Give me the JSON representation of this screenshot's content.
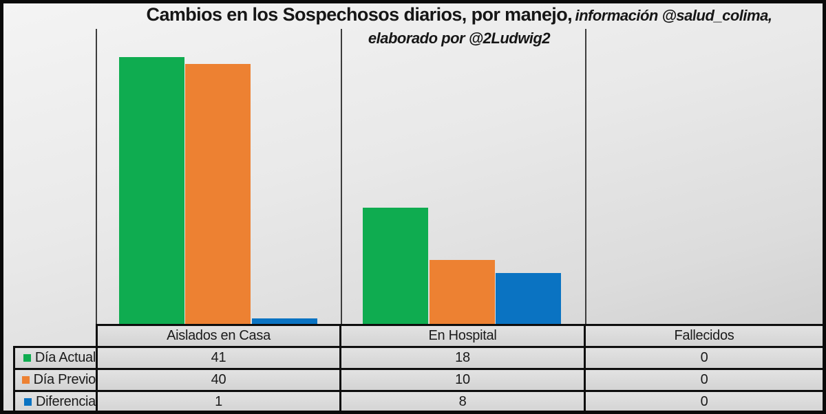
{
  "title": {
    "main": "Cambios en los Sospechosos diarios, por manejo,",
    "credit": "información @salud_colima,",
    "credit_line2": "elaborado por @2Ludwig2"
  },
  "chart_data": {
    "type": "bar",
    "title": "Cambios en los Sospechosos diarios, por manejo",
    "subtitle": "información @salud_colima, elaborado por @2Ludwig2",
    "categories": [
      "Aislados en Casa",
      "En Hospital",
      "Fallecidos"
    ],
    "series": [
      {
        "name": "Día Actual",
        "color": "#0fac50",
        "values": [
          41,
          18,
          0
        ]
      },
      {
        "name": "Día Previo",
        "color": "#ed8132",
        "values": [
          40,
          10,
          0
        ]
      },
      {
        "name": "Diferencia",
        "color": "#0a73c2",
        "values": [
          1,
          8,
          0
        ]
      }
    ],
    "ylim": [
      0,
      45
    ],
    "grid": false,
    "y_axis_labels_visible": false,
    "legend_position": "table-left"
  },
  "table": {
    "column_headers": [
      "Aislados en Casa",
      "En Hospital",
      "Fallecidos"
    ],
    "rows": [
      {
        "label": "Día Actual",
        "values": [
          "41",
          "18",
          "0"
        ]
      },
      {
        "label": "Día Previo",
        "values": [
          "40",
          "10",
          "0"
        ]
      },
      {
        "label": "Diferencia",
        "values": [
          "1",
          "8",
          "0"
        ]
      }
    ]
  },
  "colors": {
    "dia_actual": "#0fac50",
    "dia_previo": "#ed8132",
    "diferencia": "#0a73c2",
    "axis_line": "#3c3c3c",
    "table_border": "#0d0d0d"
  }
}
